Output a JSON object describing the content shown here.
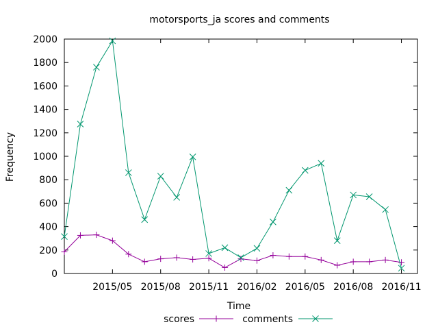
{
  "chart_data": {
    "type": "line",
    "title": "motorsports_ja scores and comments",
    "xlabel": "Time",
    "ylabel": "Frequency",
    "ylim": [
      0,
      2000
    ],
    "yticks": [
      0,
      200,
      400,
      600,
      800,
      1000,
      1200,
      1400,
      1600,
      1800,
      2000
    ],
    "xlim": [
      "2015-02",
      "2016-12"
    ],
    "xticks": [
      {
        "value": "2015-05",
        "label": "2015/05"
      },
      {
        "value": "2015-08",
        "label": "2015/08"
      },
      {
        "value": "2015-11",
        "label": "2015/11"
      },
      {
        "value": "2016-02",
        "label": "2016/02"
      },
      {
        "value": "2016-05",
        "label": "2016/05"
      },
      {
        "value": "2016-08",
        "label": "2016/08"
      },
      {
        "value": "2016-11",
        "label": "2016/11"
      }
    ],
    "x": [
      "2015-02",
      "2015-03",
      "2015-04",
      "2015-05",
      "2015-06",
      "2015-07",
      "2015-08",
      "2015-09",
      "2015-10",
      "2015-11",
      "2015-12",
      "2016-01",
      "2016-02",
      "2016-03",
      "2016-04",
      "2016-05",
      "2016-06",
      "2016-07",
      "2016-08",
      "2016-09",
      "2016-10",
      "2016-11",
      "2016-12"
    ],
    "series": [
      {
        "name": "scores",
        "color": "#94009a",
        "marker": "plus",
        "values": [
          185,
          325,
          330,
          280,
          165,
          100,
          125,
          135,
          120,
          130,
          50,
          125,
          110,
          155,
          145,
          145,
          115,
          70,
          100,
          100,
          115,
          95,
          null
        ]
      },
      {
        "name": "comments",
        "color": "#00966e",
        "marker": "cross",
        "values": [
          315,
          1275,
          1760,
          1985,
          860,
          460,
          830,
          650,
          995,
          170,
          220,
          135,
          215,
          440,
          710,
          880,
          940,
          280,
          670,
          655,
          545,
          45,
          null
        ]
      }
    ],
    "legend_position": "bottom"
  }
}
